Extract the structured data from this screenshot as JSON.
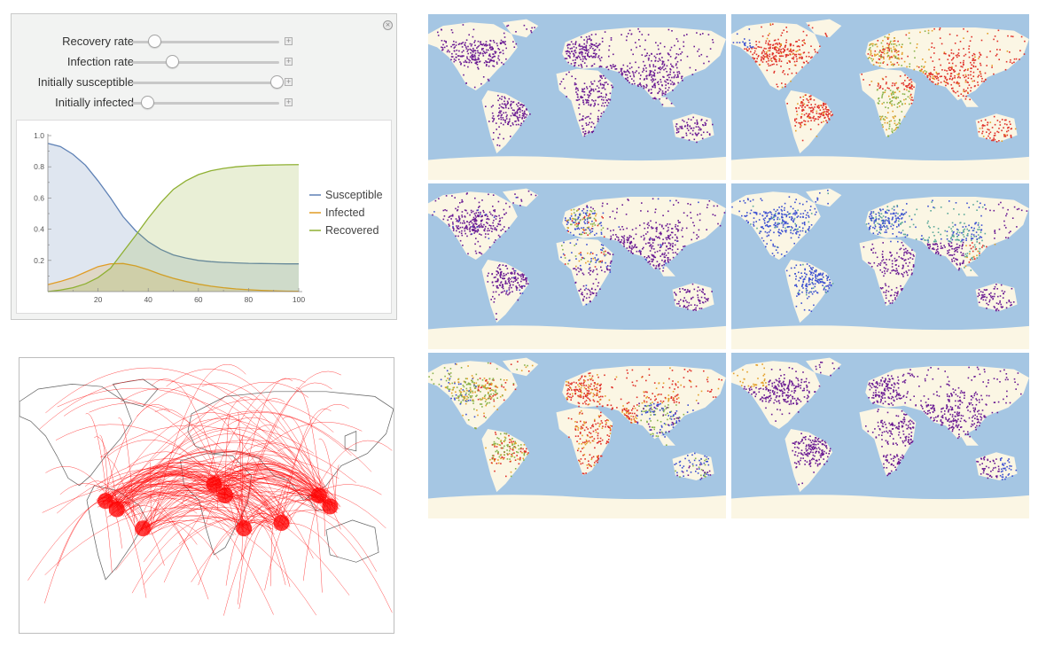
{
  "manipulate": {
    "controls": [
      {
        "label": "Recovery rate",
        "value": 0.15
      },
      {
        "label": "Infection rate",
        "value": 0.27
      },
      {
        "label": "Initially susceptible",
        "value": 0.98
      },
      {
        "label": "Initially infected",
        "value": 0.1
      }
    ],
    "close_icon": "close-icon",
    "plus_icon": "plus-icon"
  },
  "chart_data": {
    "type": "area",
    "x": [
      0,
      5,
      10,
      15,
      20,
      25,
      30,
      35,
      40,
      45,
      50,
      55,
      60,
      65,
      70,
      75,
      80,
      85,
      90,
      95,
      100
    ],
    "series": [
      {
        "name": "Susceptible",
        "color": "#5e81b5",
        "values": [
          0.95,
          0.93,
          0.88,
          0.81,
          0.71,
          0.6,
          0.48,
          0.39,
          0.32,
          0.27,
          0.235,
          0.215,
          0.2,
          0.192,
          0.187,
          0.184,
          0.181,
          0.18,
          0.179,
          0.178,
          0.178
        ]
      },
      {
        "name": "Infected",
        "color": "#e19c24",
        "values": [
          0.045,
          0.065,
          0.09,
          0.125,
          0.16,
          0.178,
          0.18,
          0.165,
          0.14,
          0.11,
          0.085,
          0.065,
          0.048,
          0.035,
          0.025,
          0.017,
          0.012,
          0.008,
          0.005,
          0.003,
          0.002
        ]
      },
      {
        "name": "Recovered",
        "color": "#8fb032",
        "values": [
          0.0,
          0.01,
          0.025,
          0.05,
          0.09,
          0.15,
          0.255,
          0.36,
          0.47,
          0.57,
          0.655,
          0.71,
          0.75,
          0.775,
          0.79,
          0.8,
          0.806,
          0.81,
          0.812,
          0.813,
          0.814
        ]
      }
    ],
    "xticks": [
      "20",
      "40",
      "60",
      "80",
      "100"
    ],
    "yticks": [
      "0.2",
      "0.4",
      "0.6",
      "0.8",
      "1.0"
    ],
    "xlim": [
      0,
      100
    ],
    "ylim": [
      0,
      1.0
    ],
    "legend_position": "right"
  },
  "colors": {
    "ocean": "#a5c6e3",
    "land": "#fbf6e4",
    "ice": "#fbf6e4",
    "flight_route": "#ff0000",
    "coastline": "#606060",
    "dot_purple": "#6a1b93",
    "dot_red": "#e03028",
    "dot_orange": "#e3a02a",
    "dot_green": "#88b24a",
    "dot_teal": "#5aa89a",
    "dot_blue": "#3b4fd1"
  },
  "maps": [
    {
      "name": "map-panel-1",
      "dominant": [
        "purple"
      ]
    },
    {
      "name": "map-panel-2",
      "dominant": [
        "red",
        "orange",
        "green"
      ]
    },
    {
      "name": "map-panel-3",
      "dominant": [
        "purple",
        "blue",
        "green"
      ]
    },
    {
      "name": "map-panel-4",
      "dominant": [
        "blue",
        "purple",
        "teal"
      ]
    },
    {
      "name": "map-panel-5",
      "dominant": [
        "red",
        "orange",
        "green"
      ]
    },
    {
      "name": "map-panel-6",
      "dominant": [
        "purple"
      ]
    }
  ]
}
